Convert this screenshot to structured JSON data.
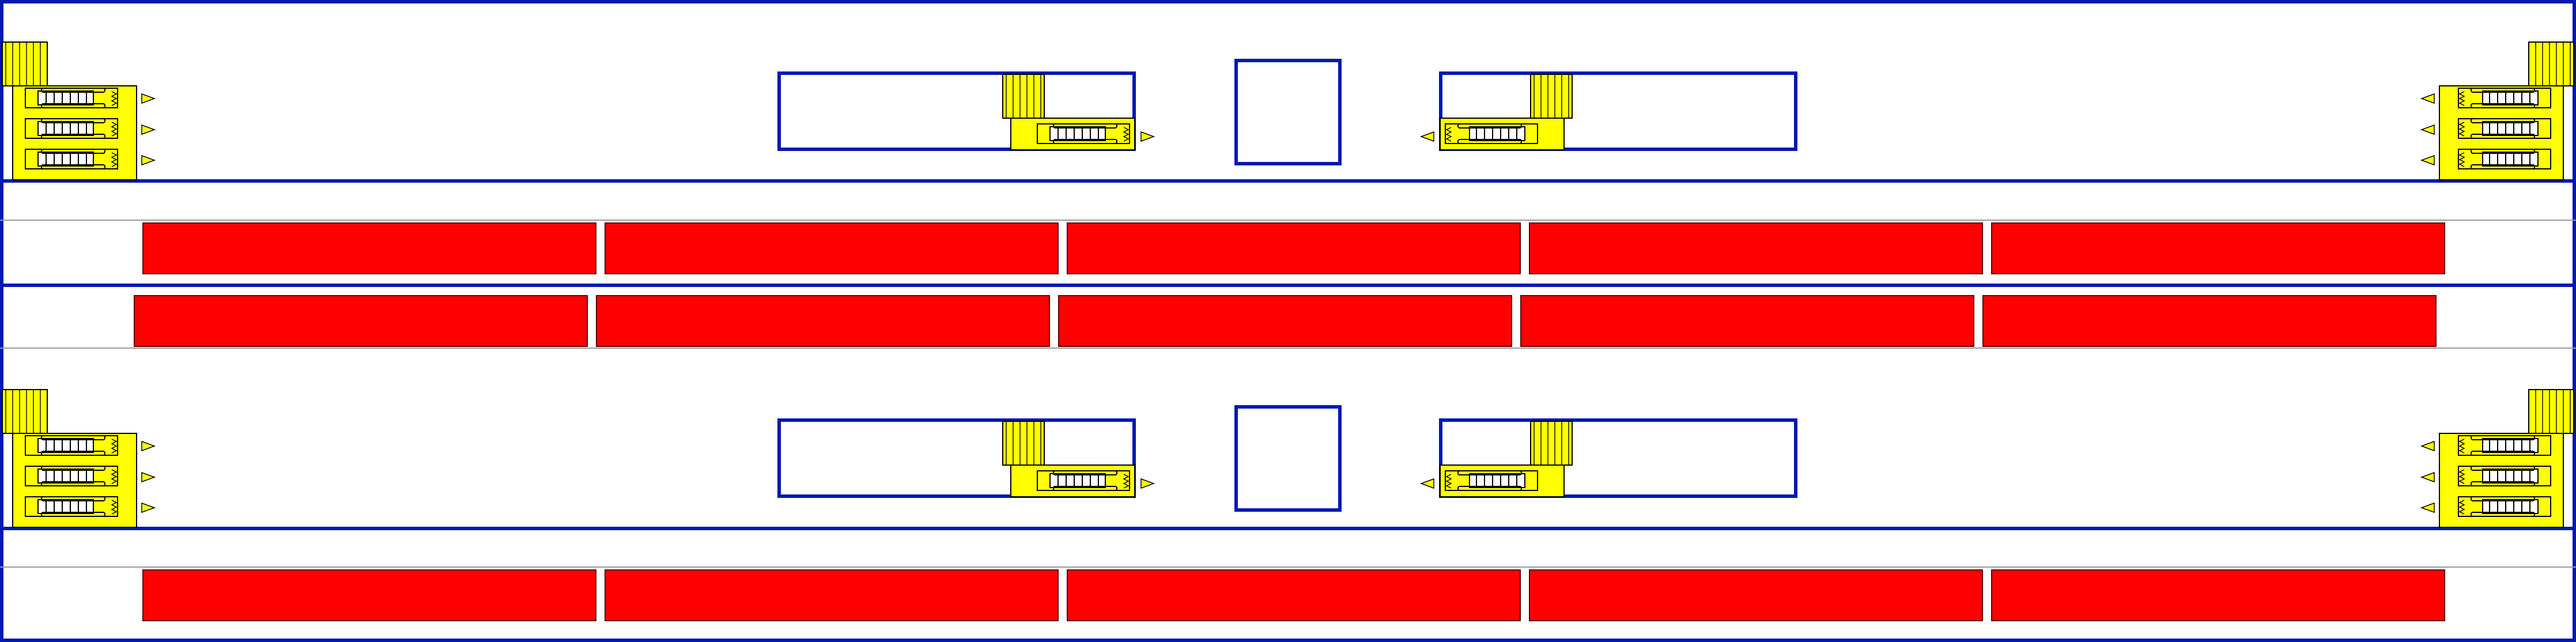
{
  "title": "",
  "colors": {
    "background": "#ffffff",
    "outline": "#0018b4",
    "train": "#ff0000",
    "train_border": "#5a0000",
    "equipment": "#ffff00",
    "equipment_border": "#000000",
    "track_line": "#9a9a9a"
  },
  "legend": [],
  "platforms": [
    {
      "id": "platform-1",
      "label": ""
    },
    {
      "id": "platform-2",
      "label": ""
    }
  ],
  "tracks": [
    {
      "id": "track-1",
      "cars": 5
    },
    {
      "id": "track-2",
      "cars": 5
    },
    {
      "id": "track-3",
      "cars": 5
    }
  ],
  "components": {
    "train_car": "red-rectangle",
    "room": "blue-outline-box",
    "vertical_circulation": "yellow-stair-escalator-unit",
    "direction_marker": "yellow-triangle"
  }
}
